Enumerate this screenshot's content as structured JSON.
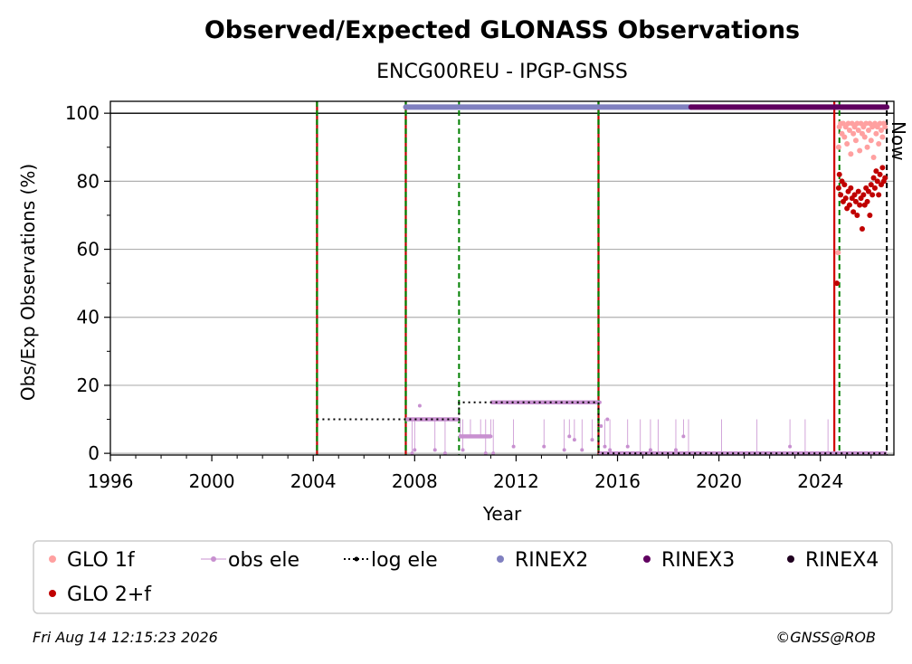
{
  "chart_data": {
    "type": "scatter",
    "title": "Observed/Expected GLONASS Observations",
    "subtitle": "ENCG00REU - IPGP-GNSS",
    "xlabel": "Year",
    "ylabel": "Obs/Exp Observations (%)",
    "xlim": [
      1996.0,
      2026.9
    ],
    "ylim": [
      -0.5,
      103.5
    ],
    "xticks": [
      "1996",
      "2000",
      "2004",
      "2008",
      "2012",
      "2016",
      "2020",
      "2024"
    ],
    "yticks": [
      "0",
      "20",
      "40",
      "60",
      "80",
      "100"
    ],
    "xtick_values": [
      1996,
      2000,
      2004,
      2008,
      2012,
      2016,
      2020,
      2024
    ],
    "ytick_values": [
      0,
      20,
      40,
      60,
      80,
      100
    ],
    "grid": "horizontal",
    "reference_line": 100,
    "now_label": "Now",
    "now_x": 2026.62,
    "event_lines": [
      {
        "x": 2004.15,
        "style": "green-red-dashed"
      },
      {
        "x": 2007.65,
        "style": "green-red-dashed"
      },
      {
        "x": 2009.75,
        "style": "green-dashed"
      },
      {
        "x": 2015.25,
        "style": "green-red-dashed"
      },
      {
        "x": 2024.55,
        "style": "red-solid"
      },
      {
        "x": 2024.75,
        "style": "green-dashed"
      },
      {
        "x": 2026.62,
        "style": "black-dashed"
      }
    ],
    "series": [
      {
        "name": "GLO 1f",
        "color": "#ffa0a0",
        "points": [
          [
            2024.65,
            50
          ],
          [
            2024.7,
            59
          ],
          [
            2024.72,
            90
          ],
          [
            2024.75,
            96
          ],
          [
            2024.8,
            97
          ],
          [
            2024.85,
            94
          ],
          [
            2024.9,
            97
          ],
          [
            2024.95,
            93
          ],
          [
            2025.0,
            96
          ],
          [
            2025.05,
            91
          ],
          [
            2025.1,
            97
          ],
          [
            2025.15,
            95
          ],
          [
            2025.2,
            88
          ],
          [
            2025.25,
            97
          ],
          [
            2025.3,
            94
          ],
          [
            2025.35,
            96
          ],
          [
            2025.4,
            92
          ],
          [
            2025.45,
            97
          ],
          [
            2025.5,
            95
          ],
          [
            2025.55,
            89
          ],
          [
            2025.6,
            97
          ],
          [
            2025.65,
            94
          ],
          [
            2025.7,
            96
          ],
          [
            2025.75,
            93
          ],
          [
            2025.8,
            97
          ],
          [
            2025.85,
            90
          ],
          [
            2025.9,
            95
          ],
          [
            2025.95,
            97
          ],
          [
            2026.0,
            92
          ],
          [
            2026.05,
            96
          ],
          [
            2026.1,
            87
          ],
          [
            2026.15,
            97
          ],
          [
            2026.2,
            94
          ],
          [
            2026.25,
            96
          ],
          [
            2026.3,
            91
          ],
          [
            2026.35,
            97
          ],
          [
            2026.4,
            95
          ],
          [
            2026.45,
            93
          ],
          [
            2026.5,
            97
          ],
          [
            2026.55,
            96
          ]
        ]
      },
      {
        "name": "GLO 2+f",
        "color": "#c00000",
        "points": [
          [
            2024.65,
            50
          ],
          [
            2024.72,
            78
          ],
          [
            2024.75,
            82
          ],
          [
            2024.8,
            76
          ],
          [
            2024.85,
            80
          ],
          [
            2024.9,
            74
          ],
          [
            2024.95,
            79
          ],
          [
            2025.0,
            75
          ],
          [
            2025.05,
            72
          ],
          [
            2025.1,
            77
          ],
          [
            2025.15,
            73
          ],
          [
            2025.2,
            78
          ],
          [
            2025.25,
            75
          ],
          [
            2025.3,
            71
          ],
          [
            2025.35,
            76
          ],
          [
            2025.4,
            74
          ],
          [
            2025.45,
            70
          ],
          [
            2025.5,
            77
          ],
          [
            2025.55,
            73
          ],
          [
            2025.6,
            75
          ],
          [
            2025.65,
            66
          ],
          [
            2025.7,
            76
          ],
          [
            2025.75,
            73
          ],
          [
            2025.8,
            78
          ],
          [
            2025.85,
            74
          ],
          [
            2025.9,
            77
          ],
          [
            2025.95,
            70
          ],
          [
            2026.0,
            79
          ],
          [
            2026.05,
            76
          ],
          [
            2026.1,
            81
          ],
          [
            2026.15,
            78
          ],
          [
            2026.2,
            83
          ],
          [
            2026.25,
            80
          ],
          [
            2026.3,
            76
          ],
          [
            2026.35,
            82
          ],
          [
            2026.4,
            79
          ],
          [
            2026.45,
            84
          ],
          [
            2026.5,
            80
          ],
          [
            2026.55,
            81
          ]
        ]
      },
      {
        "name": "obs ele",
        "color": "#c890d0",
        "points": [
          [
            2007.8,
            10
          ],
          [
            2007.9,
            0
          ],
          [
            2008.0,
            1
          ],
          [
            2008.2,
            14
          ],
          [
            2008.5,
            10
          ],
          [
            2008.8,
            1
          ],
          [
            2009.1,
            10
          ],
          [
            2009.2,
            0
          ],
          [
            2009.5,
            10
          ],
          [
            2009.8,
            5
          ],
          [
            2009.9,
            1
          ],
          [
            2010.2,
            5
          ],
          [
            2010.6,
            5
          ],
          [
            2010.8,
            0
          ],
          [
            2011.0,
            5
          ],
          [
            2011.1,
            0
          ],
          [
            2011.2,
            15
          ],
          [
            2011.5,
            15
          ],
          [
            2011.9,
            2
          ],
          [
            2012.3,
            15
          ],
          [
            2012.7,
            15
          ],
          [
            2013.1,
            2
          ],
          [
            2013.3,
            15
          ],
          [
            2013.8,
            15
          ],
          [
            2013.9,
            1
          ],
          [
            2014.1,
            5
          ],
          [
            2014.3,
            4
          ],
          [
            2014.6,
            1
          ],
          [
            2014.8,
            15
          ],
          [
            2015.0,
            4
          ],
          [
            2015.3,
            15
          ],
          [
            2015.35,
            8
          ],
          [
            2015.5,
            2
          ],
          [
            2015.6,
            10
          ],
          [
            2015.7,
            1
          ],
          [
            2016.4,
            2
          ],
          [
            2016.9,
            0
          ],
          [
            2017.3,
            1
          ],
          [
            2017.6,
            0
          ],
          [
            2018.3,
            1
          ],
          [
            2018.6,
            5
          ],
          [
            2018.8,
            0
          ],
          [
            2020.1,
            0
          ],
          [
            2021.5,
            0
          ],
          [
            2022.8,
            2
          ],
          [
            2023.4,
            0
          ],
          [
            2024.3,
            0
          ]
        ],
        "segments": [
          [
            2007.65,
            2009.75,
            10
          ],
          [
            2009.75,
            2011.0,
            5
          ],
          [
            2011.0,
            2015.25,
            15
          ],
          [
            2015.25,
            2026.62,
            0
          ]
        ]
      },
      {
        "name": "log ele",
        "color": "#000000",
        "steps": [
          [
            2004.15,
            10
          ],
          [
            2007.65,
            10
          ],
          [
            2009.75,
            15
          ],
          [
            2015.25,
            0
          ],
          [
            2026.62,
            0
          ]
        ]
      },
      {
        "name": "RINEX2",
        "color": "#8080c0",
        "bar": [
          2007.65,
          2018.9
        ],
        "y": 101.8
      },
      {
        "name": "RINEX3",
        "color": "#600060",
        "bar": [
          2018.9,
          2026.62
        ],
        "y": 101.8
      },
      {
        "name": "RINEX4",
        "color": "#200020",
        "bar": [],
        "y": 101.8
      }
    ]
  },
  "legend": {
    "items": [
      {
        "label": "GLO 1f",
        "color": "#ffa0a0",
        "marker": "dot"
      },
      {
        "label": "obs ele",
        "color": "#c890d0",
        "marker": "line-dot"
      },
      {
        "label": "log ele",
        "color": "#000000",
        "marker": "dotted-line"
      },
      {
        "label": "RINEX2",
        "color": "#8080c0",
        "marker": "dot"
      },
      {
        "label": "RINEX3",
        "color": "#600060",
        "marker": "dot"
      },
      {
        "label": "RINEX4",
        "color": "#200020",
        "marker": "dot"
      },
      {
        "label": "GLO 2+f",
        "color": "#c00000",
        "marker": "dot"
      }
    ]
  },
  "footer": {
    "timestamp": "Fri Aug 14 12:15:23 2026",
    "credit": "©GNSS@ROB"
  }
}
